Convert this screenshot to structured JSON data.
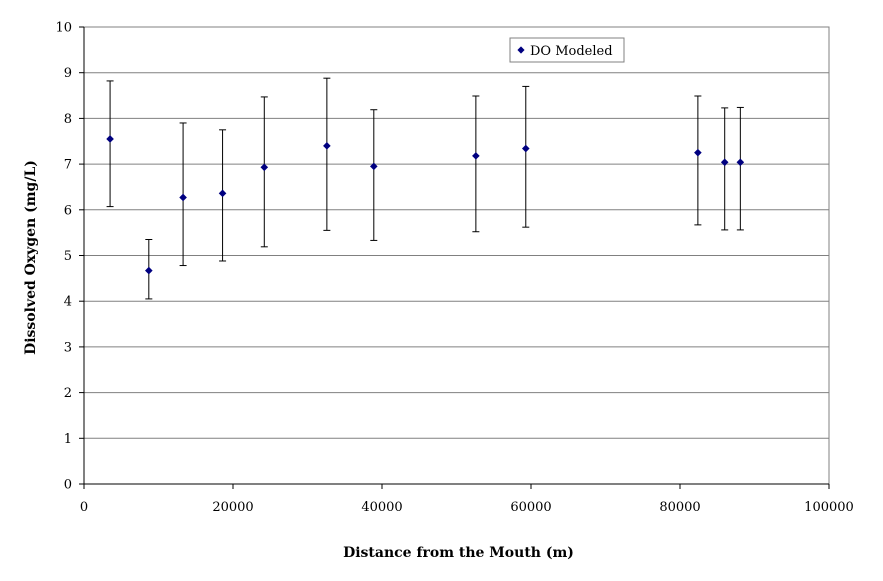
{
  "chart_data": {
    "type": "scatter",
    "title": "",
    "xlabel": "Distance from the Mouth (m)",
    "ylabel": "Dissolved Oxygen (mg/L)",
    "xlim": [
      0,
      100000
    ],
    "ylim": [
      0,
      10
    ],
    "x_ticks": [
      "0",
      "20000",
      "40000",
      "60000",
      "80000",
      "100000"
    ],
    "y_ticks": [
      "0",
      "1",
      "2",
      "3",
      "4",
      "5",
      "6",
      "7",
      "8",
      "9",
      "10"
    ],
    "grid": "horizontal",
    "legend_position": "top-center",
    "marker_color": "#000080",
    "series": [
      {
        "name": "DO Modeled",
        "points": [
          {
            "x": 3500,
            "y": 7.55,
            "y_low": 6.07,
            "y_high": 8.82
          },
          {
            "x": 8700,
            "y": 4.67,
            "y_low": 4.05,
            "y_high": 5.35
          },
          {
            "x": 13300,
            "y": 6.27,
            "y_low": 4.78,
            "y_high": 7.9
          },
          {
            "x": 18600,
            "y": 6.36,
            "y_low": 4.88,
            "y_high": 7.75
          },
          {
            "x": 24200,
            "y": 6.93,
            "y_low": 5.19,
            "y_high": 8.47
          },
          {
            "x": 32600,
            "y": 7.4,
            "y_low": 5.55,
            "y_high": 8.88
          },
          {
            "x": 38900,
            "y": 6.95,
            "y_low": 5.33,
            "y_high": 8.19
          },
          {
            "x": 52600,
            "y": 7.18,
            "y_low": 5.52,
            "y_high": 8.49
          },
          {
            "x": 59300,
            "y": 7.34,
            "y_low": 5.62,
            "y_high": 8.7
          },
          {
            "x": 82400,
            "y": 7.25,
            "y_low": 5.67,
            "y_high": 8.49
          },
          {
            "x": 86000,
            "y": 7.04,
            "y_low": 5.56,
            "y_high": 8.23
          },
          {
            "x": 88100,
            "y": 7.04,
            "y_low": 5.56,
            "y_high": 8.24
          }
        ]
      }
    ]
  }
}
